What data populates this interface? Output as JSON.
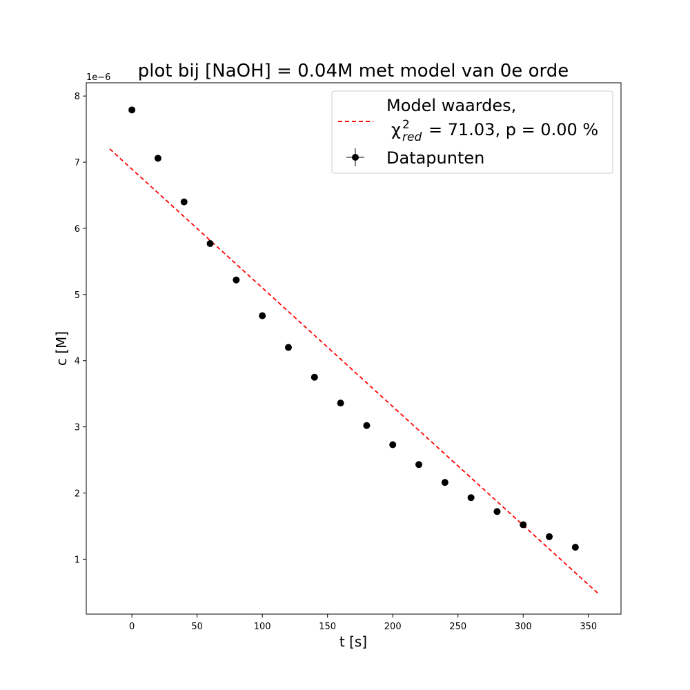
{
  "chart_data": {
    "type": "scatter",
    "title": "plot bij [NaOH] = 0.04M met model van 0e orde",
    "xlabel": "t [s]",
    "ylabel": "c [M]",
    "y_offset_label": "1e−6",
    "xlim": [
      -35,
      375
    ],
    "ylim": [
      0.17,
      8.2
    ],
    "x_ticks": [
      0,
      50,
      100,
      150,
      200,
      250,
      300,
      350
    ],
    "y_ticks": [
      1,
      2,
      3,
      4,
      5,
      6,
      7,
      8
    ],
    "grid": false,
    "legend_position": "top-right",
    "series": [
      {
        "name": "Datapunten",
        "kind": "errorbar-points",
        "color": "#000000",
        "x": [
          0,
          20,
          40,
          60,
          80,
          100,
          120,
          140,
          160,
          180,
          200,
          220,
          240,
          260,
          280,
          300,
          320,
          340
        ],
        "y": [
          7.79,
          7.06,
          6.4,
          5.77,
          5.22,
          4.68,
          4.2,
          3.75,
          3.36,
          3.02,
          2.73,
          2.43,
          2.16,
          1.93,
          1.72,
          1.52,
          1.34,
          1.18
        ]
      },
      {
        "name": "Model waardes,",
        "name_line2": "= 71.03, p = 0.00 %",
        "kind": "dashed-line",
        "color": "#ff0000",
        "x": [
          -17,
          357
        ],
        "y": [
          7.2,
          0.49
        ]
      }
    ]
  }
}
